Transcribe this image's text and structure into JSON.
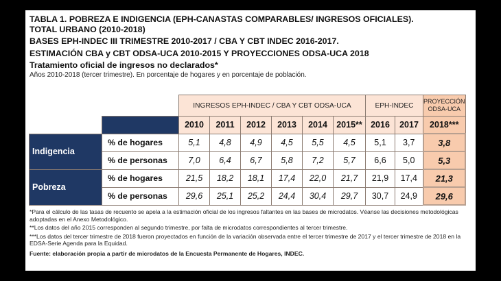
{
  "title": {
    "line1": "TABLA 1. POBREZA E INDIGENCIA (EPH-CANASTAS COMPARABLES/ INGRESOS OFICIALES).",
    "line2": "TOTAL URBANO (2010-2018)",
    "line3": "BASES EPH-INDEC III TRIMESTRE 2010-2017 / CBA Y CBT INDEC 2016-2017.",
    "line4": "ESTIMACIÓN CBA y CBT ODSA-UCA 2010-2015 Y PROYECCIONES ODSA-UCA 2018",
    "line5": "Tratamiento oficial de ingresos no declarados*",
    "subtitle": "Años 2010-2018 (tercer trimestre). En porcentaje de hogares y en porcentaje de población."
  },
  "table": {
    "group_headers": {
      "ingresos": "INGRESOS EPH-INDEC / CBA Y CBT ODSA-UCA",
      "eph": "EPH-INDEC",
      "proj_line1": "PROYECCIÓN",
      "proj_line2": "ODSA-UCA"
    },
    "years": [
      "2010",
      "2011",
      "2012",
      "2013",
      "2014",
      "2015**",
      "2016",
      "2017",
      "2018***"
    ],
    "groups": [
      {
        "name": "Indigencia",
        "rows": [
          {
            "label": "% de hogares",
            "values": [
              "5,1",
              "4,8",
              "4,9",
              "4,5",
              "5,5",
              "4,5",
              "5,1",
              "3,7",
              "3,8"
            ]
          },
          {
            "label": "% de personas",
            "values": [
              "7,0",
              "6,4",
              "6,7",
              "5,8",
              "7,2",
              "5,7",
              "6,6",
              "5,0",
              "5,3"
            ]
          }
        ]
      },
      {
        "name": "Pobreza",
        "rows": [
          {
            "label": "% de hogares",
            "values": [
              "21,5",
              "18,2",
              "18,1",
              "17,4",
              "22,0",
              "21,7",
              "21,9",
              "17,4",
              "21,3"
            ]
          },
          {
            "label": "% de personas",
            "values": [
              "29,6",
              "25,1",
              "25,2",
              "24,4",
              "30,4",
              "29,7",
              "30,7",
              "24,9",
              "29,6"
            ]
          }
        ]
      }
    ]
  },
  "notes": {
    "n1": "*Para el cálculo de las tasas de recuento se apela a la estimación oficial de los ingresos faltantes en las bases de microdatos. Véanse las decisiones metodológicas adoptadas en el Anexo Metodológico.",
    "n2": "**Los datos del año 2015 corresponden al segundo trimestre, por falta de microdatos correspondientes al tercer trimestre.",
    "n3": "***Los datos del tercer trimestre de 2018 fueron proyectados en función de la variación observada entre el tercer trimestre de 2017 y el tercer trimestre de 2018 en la EDSA-Serie Agenda para la Equidad.",
    "source": "Fuente: elaboración propia a partir de microdatos de la Encuesta Permanente de Hogares, INDEC."
  }
}
